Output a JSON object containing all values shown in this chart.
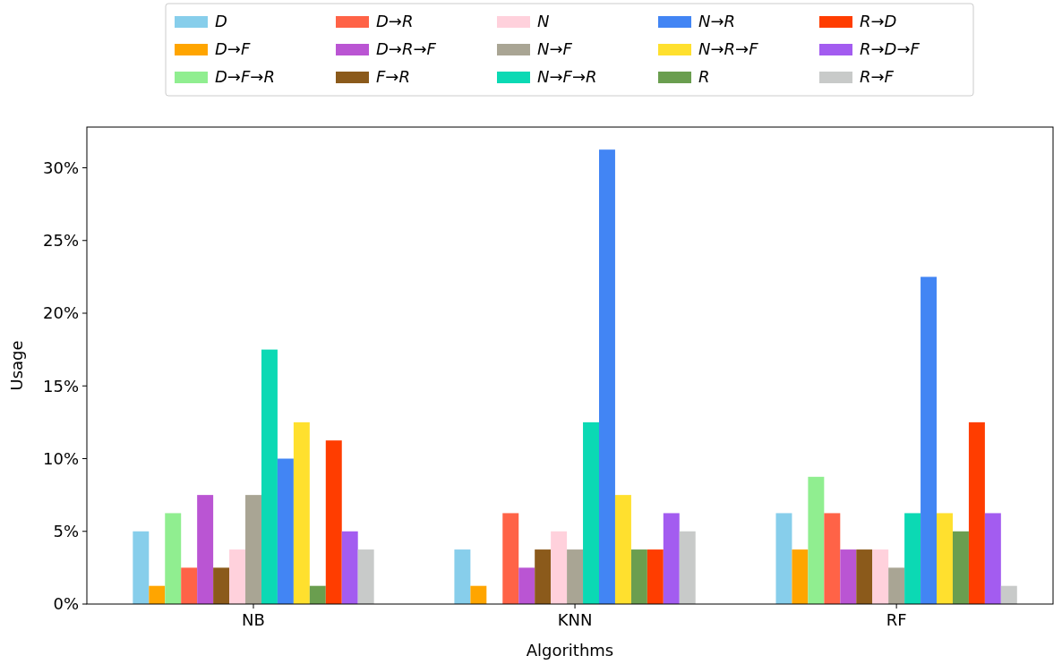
{
  "chart_data": {
    "type": "bar",
    "xlabel": "Algorithms",
    "ylabel": "Usage",
    "categories": [
      "NB",
      "KNN",
      "RF"
    ],
    "ylim": [
      0,
      32.8
    ],
    "yticks": [
      {
        "value": 0,
        "label": "0%"
      },
      {
        "value": 5,
        "label": "5%"
      },
      {
        "value": 10,
        "label": "10%"
      },
      {
        "value": 15,
        "label": "15%"
      },
      {
        "value": 20,
        "label": "20%"
      },
      {
        "value": 25,
        "label": "25%"
      },
      {
        "value": 30,
        "label": "30%"
      }
    ],
    "legend": "top",
    "grid": false,
    "series": [
      {
        "name": "D",
        "color": "#87ceeb",
        "values": [
          5,
          3.75,
          6.25
        ]
      },
      {
        "name": "D→F",
        "color": "#ffa500",
        "values": [
          1.25,
          1.25,
          3.75
        ]
      },
      {
        "name": "D→F→R",
        "color": "#90ee90",
        "values": [
          6.25,
          0,
          8.75
        ]
      },
      {
        "name": "D→R",
        "color": "#ff6347",
        "values": [
          2.5,
          6.25,
          6.25
        ]
      },
      {
        "name": "D→R→F",
        "color": "#ba55d3",
        "values": [
          7.5,
          2.5,
          3.75
        ]
      },
      {
        "name": "F→R",
        "color": "#8b5a1b",
        "values": [
          2.5,
          3.75,
          3.75
        ]
      },
      {
        "name": "N",
        "color": "#ffd1dc",
        "values": [
          3.75,
          5,
          3.75
        ]
      },
      {
        "name": "N→F",
        "color": "#a9a594",
        "values": [
          7.5,
          3.75,
          2.5
        ]
      },
      {
        "name": "N→F→R",
        "color": "#0bd9b4",
        "values": [
          17.5,
          12.5,
          6.25
        ]
      },
      {
        "name": "N→R",
        "color": "#4285f4",
        "values": [
          10,
          31.25,
          22.5
        ]
      },
      {
        "name": "N→R→F",
        "color": "#ffe02e",
        "values": [
          12.5,
          7.5,
          6.25
        ]
      },
      {
        "name": "R",
        "color": "#6a9e4f",
        "values": [
          1.25,
          3.75,
          5
        ]
      },
      {
        "name": "R→D",
        "color": "#ff3d00",
        "values": [
          11.25,
          3.75,
          12.5
        ]
      },
      {
        "name": "R→D→F",
        "color": "#a35cf0",
        "values": [
          5,
          6.25,
          6.25
        ]
      },
      {
        "name": "R→F",
        "color": "#c8cac9",
        "values": [
          3.75,
          5,
          1.25
        ]
      }
    ]
  }
}
